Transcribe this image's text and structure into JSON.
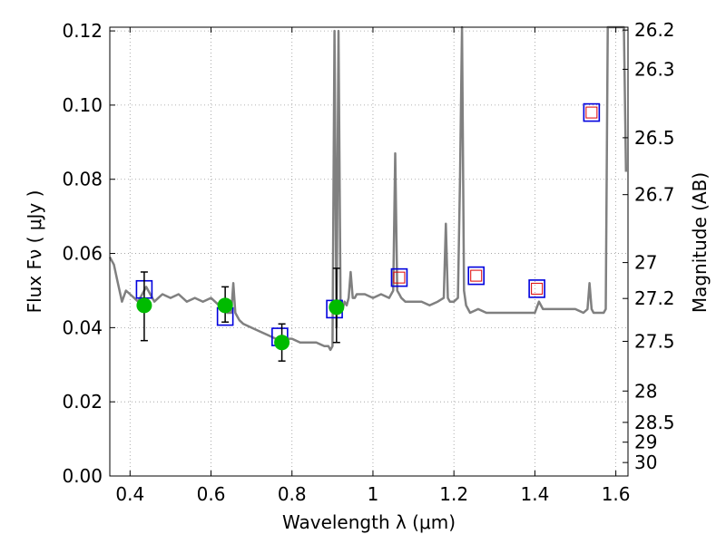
{
  "chart_data": {
    "type": "scatter",
    "xlabel": "Wavelength  λ (μm)",
    "ylabel": "Flux  Fν  ( μJy )",
    "y2label": "Magnitude (AB)",
    "xlim": [
      0.35,
      1.63
    ],
    "ylim": [
      0.0,
      0.121
    ],
    "grid": true,
    "x_ticks": [
      0.4,
      0.6,
      0.8,
      1.0,
      1.2,
      1.4,
      1.6
    ],
    "x_tick_labels": [
      "0.4",
      "0.6",
      "0.8",
      "1",
      "1.2",
      "1.4",
      "1.6"
    ],
    "y_ticks": [
      0.0,
      0.02,
      0.04,
      0.06,
      0.08,
      0.1,
      0.12
    ],
    "y_tick_labels": [
      "0.00",
      "0.02",
      "0.04",
      "0.06",
      "0.08",
      "0.10",
      "0.12"
    ],
    "y2_tick_labels": [
      "26.2",
      "26.3",
      "26.5",
      "26.7",
      "27",
      "27.2",
      "27.5",
      "28",
      "28.5",
      "29",
      "30"
    ],
    "colors": {
      "spectrum": "#808080",
      "observed": "#00bb00",
      "model_box_outer": "#0000dd",
      "model_box_inner": "#dd0000",
      "errorbar": "#000000",
      "grid": "#999999"
    },
    "series": [
      {
        "kind": "line",
        "x": [
          0.35,
          0.36,
          0.37,
          0.38,
          0.39,
          0.4,
          0.41,
          0.42,
          0.43,
          0.44,
          0.45,
          0.46,
          0.47,
          0.48,
          0.5,
          0.52,
          0.54,
          0.56,
          0.58,
          0.6,
          0.62,
          0.64,
          0.65,
          0.655,
          0.66,
          0.665,
          0.67,
          0.68,
          0.7,
          0.72,
          0.74,
          0.76,
          0.78,
          0.8,
          0.82,
          0.84,
          0.86,
          0.88,
          0.89,
          0.895,
          0.9,
          0.905,
          0.91,
          0.915,
          0.92,
          0.925,
          0.93,
          0.935,
          0.94,
          0.945,
          0.95,
          0.955,
          0.96,
          0.98,
          1.0,
          1.02,
          1.04,
          1.05,
          1.055,
          1.06,
          1.065,
          1.07,
          1.08,
          1.1,
          1.12,
          1.14,
          1.16,
          1.175,
          1.18,
          1.185,
          1.19,
          1.2,
          1.21,
          1.215,
          1.22,
          1.225,
          1.23,
          1.235,
          1.24,
          1.26,
          1.28,
          1.3,
          1.32,
          1.34,
          1.36,
          1.38,
          1.4,
          1.41,
          1.42,
          1.44,
          1.46,
          1.48,
          1.5,
          1.52,
          1.53,
          1.535,
          1.54,
          1.545,
          1.55,
          1.56,
          1.57,
          1.575,
          1.58,
          1.585,
          1.59,
          1.6,
          1.61,
          1.62,
          1.625
        ],
        "y": [
          0.059,
          0.057,
          0.052,
          0.047,
          0.05,
          0.049,
          0.048,
          0.047,
          0.049,
          0.051,
          0.049,
          0.047,
          0.048,
          0.049,
          0.048,
          0.049,
          0.047,
          0.048,
          0.047,
          0.048,
          0.046,
          0.044,
          0.044,
          0.052,
          0.044,
          0.043,
          0.042,
          0.041,
          0.04,
          0.039,
          0.038,
          0.037,
          0.037,
          0.037,
          0.036,
          0.036,
          0.036,
          0.035,
          0.035,
          0.034,
          0.035,
          0.12,
          0.04,
          0.12,
          0.045,
          0.045,
          0.047,
          0.046,
          0.048,
          0.055,
          0.048,
          0.048,
          0.049,
          0.049,
          0.048,
          0.049,
          0.048,
          0.05,
          0.087,
          0.05,
          0.049,
          0.048,
          0.047,
          0.047,
          0.047,
          0.046,
          0.047,
          0.048,
          0.068,
          0.048,
          0.047,
          0.047,
          0.048,
          0.08,
          0.121,
          0.05,
          0.046,
          0.045,
          0.044,
          0.045,
          0.044,
          0.044,
          0.044,
          0.044,
          0.044,
          0.044,
          0.044,
          0.047,
          0.045,
          0.045,
          0.045,
          0.045,
          0.045,
          0.044,
          0.045,
          0.052,
          0.045,
          0.044,
          0.044,
          0.044,
          0.044,
          0.045,
          0.121,
          0.121,
          0.121,
          0.121,
          0.121,
          0.121,
          0.082
        ]
      },
      {
        "kind": "points",
        "x": [
          0.435,
          0.635,
          0.775,
          0.91
        ],
        "y": [
          0.046,
          0.046,
          0.036,
          0.0455
        ],
        "yerr_low": [
          0.0095,
          0.0045,
          0.005,
          0.0095
        ],
        "yerr_high": [
          0.009,
          0.005,
          0.005,
          0.0105
        ]
      },
      {
        "kind": "model_boxes",
        "x": [
          0.435,
          0.635,
          0.77,
          0.905,
          1.065,
          1.255,
          1.405,
          1.54
        ],
        "y": [
          0.0503,
          0.043,
          0.0375,
          0.045,
          0.0535,
          0.054,
          0.0505,
          0.098
        ],
        "inner_red": [
          false,
          false,
          false,
          false,
          true,
          true,
          true,
          true
        ]
      }
    ]
  }
}
